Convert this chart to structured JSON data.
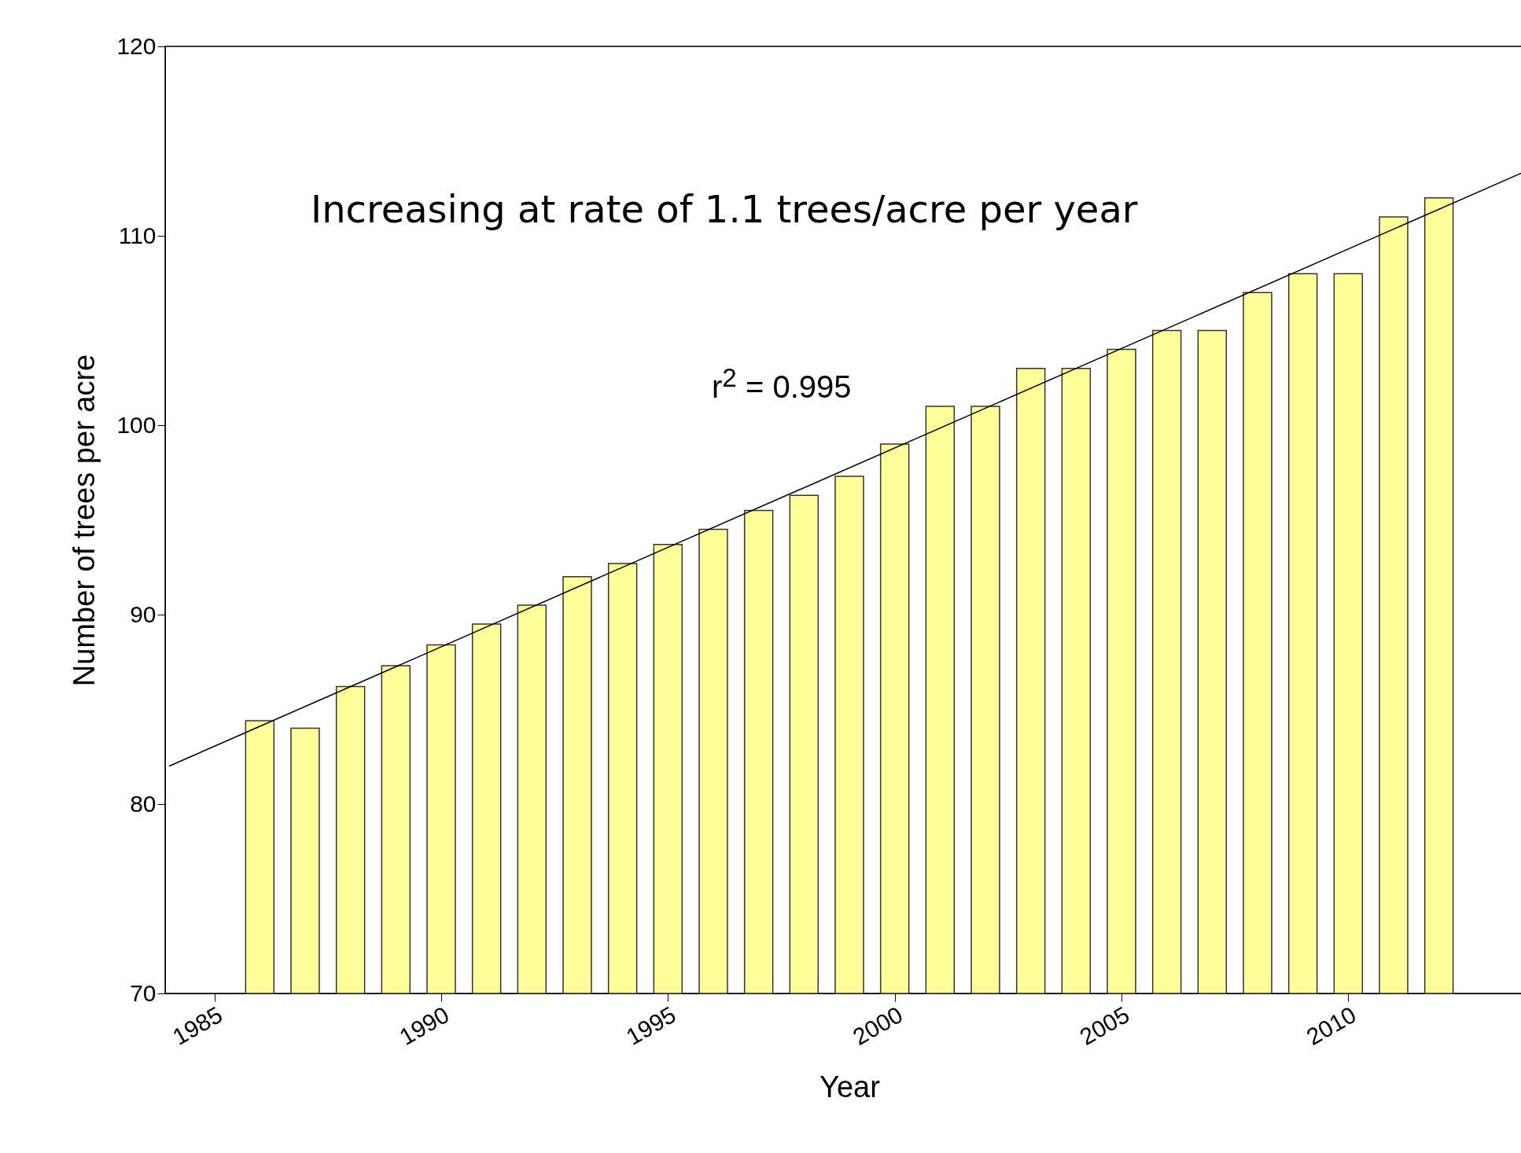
{
  "chart_data": {
    "type": "bar",
    "xlabel": "Year",
    "ylabel": "Number of trees per acre",
    "x": [
      1986,
      1987,
      1988,
      1989,
      1990,
      1991,
      1992,
      1993,
      1994,
      1995,
      1996,
      1997,
      1998,
      1999,
      2000,
      2001,
      2002,
      2003,
      2004,
      2005,
      2006,
      2007,
      2008,
      2009,
      2010,
      2011,
      2012
    ],
    "series": [
      {
        "color": "#ffff99",
        "values": [
          84.4,
          84.0,
          86.2,
          87.3,
          88.4,
          89.5,
          90.5,
          92.0,
          92.7,
          93.7,
          94.5,
          95.5,
          96.3,
          97.3,
          99.0,
          101.0,
          101.0,
          103.0,
          103.0,
          104.0,
          105.0,
          105.0,
          107.0,
          108.0,
          108.0,
          111.0,
          112.0
        ]
      },
      {
        "type": "line",
        "color": "#000000",
        "x": [
          1984,
          2014
        ],
        "values": [
          82.0,
          113.5
        ]
      }
    ],
    "xlim": [
      1984,
      2014
    ],
    "xticks": [
      1985,
      1990,
      1995,
      2000,
      2005,
      2010
    ],
    "ylim": [
      70,
      120
    ],
    "yticks": [
      70,
      80,
      90,
      100,
      110,
      120
    ],
    "grid": false,
    "annotations": [
      "Increasing at rate of 1.1 trees/acre per year",
      "r$^{2}$ = 0.995"
    ]
  }
}
